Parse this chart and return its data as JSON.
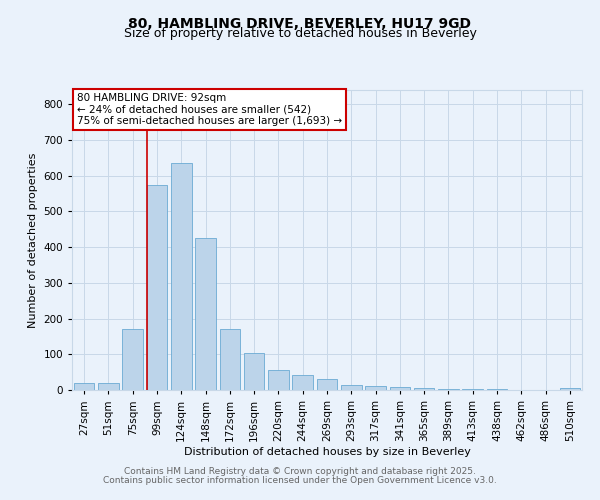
{
  "title_line1": "80, HAMBLING DRIVE, BEVERLEY, HU17 9GD",
  "title_line2": "Size of property relative to detached houses in Beverley",
  "xlabel": "Distribution of detached houses by size in Beverley",
  "ylabel": "Number of detached properties",
  "bar_labels": [
    "27sqm",
    "51sqm",
    "75sqm",
    "99sqm",
    "124sqm",
    "148sqm",
    "172sqm",
    "196sqm",
    "220sqm",
    "244sqm",
    "269sqm",
    "293sqm",
    "317sqm",
    "341sqm",
    "365sqm",
    "389sqm",
    "413sqm",
    "438sqm",
    "462sqm",
    "486sqm",
    "510sqm"
  ],
  "bar_values": [
    20,
    20,
    170,
    575,
    635,
    425,
    170,
    105,
    55,
    42,
    30,
    15,
    10,
    8,
    6,
    4,
    3,
    2,
    1,
    0,
    5
  ],
  "bar_color": "#bcd4ea",
  "bar_edge_color": "#6aaad4",
  "grid_color": "#c8d8e8",
  "background_color": "#eaf2fb",
  "red_line_x": 2.58,
  "annotation_text": "80 HAMBLING DRIVE: 92sqm\n← 24% of detached houses are smaller (542)\n75% of semi-detached houses are larger (1,693) →",
  "annotation_box_color": "#ffffff",
  "annotation_border_color": "#cc0000",
  "ylim": [
    0,
    840
  ],
  "yticks": [
    0,
    100,
    200,
    300,
    400,
    500,
    600,
    700,
    800
  ],
  "footer_line1": "Contains HM Land Registry data © Crown copyright and database right 2025.",
  "footer_line2": "Contains public sector information licensed under the Open Government Licence v3.0.",
  "title_fontsize": 10,
  "subtitle_fontsize": 9,
  "label_fontsize": 8,
  "tick_fontsize": 7.5,
  "annot_fontsize": 7.5,
  "footer_fontsize": 6.5
}
